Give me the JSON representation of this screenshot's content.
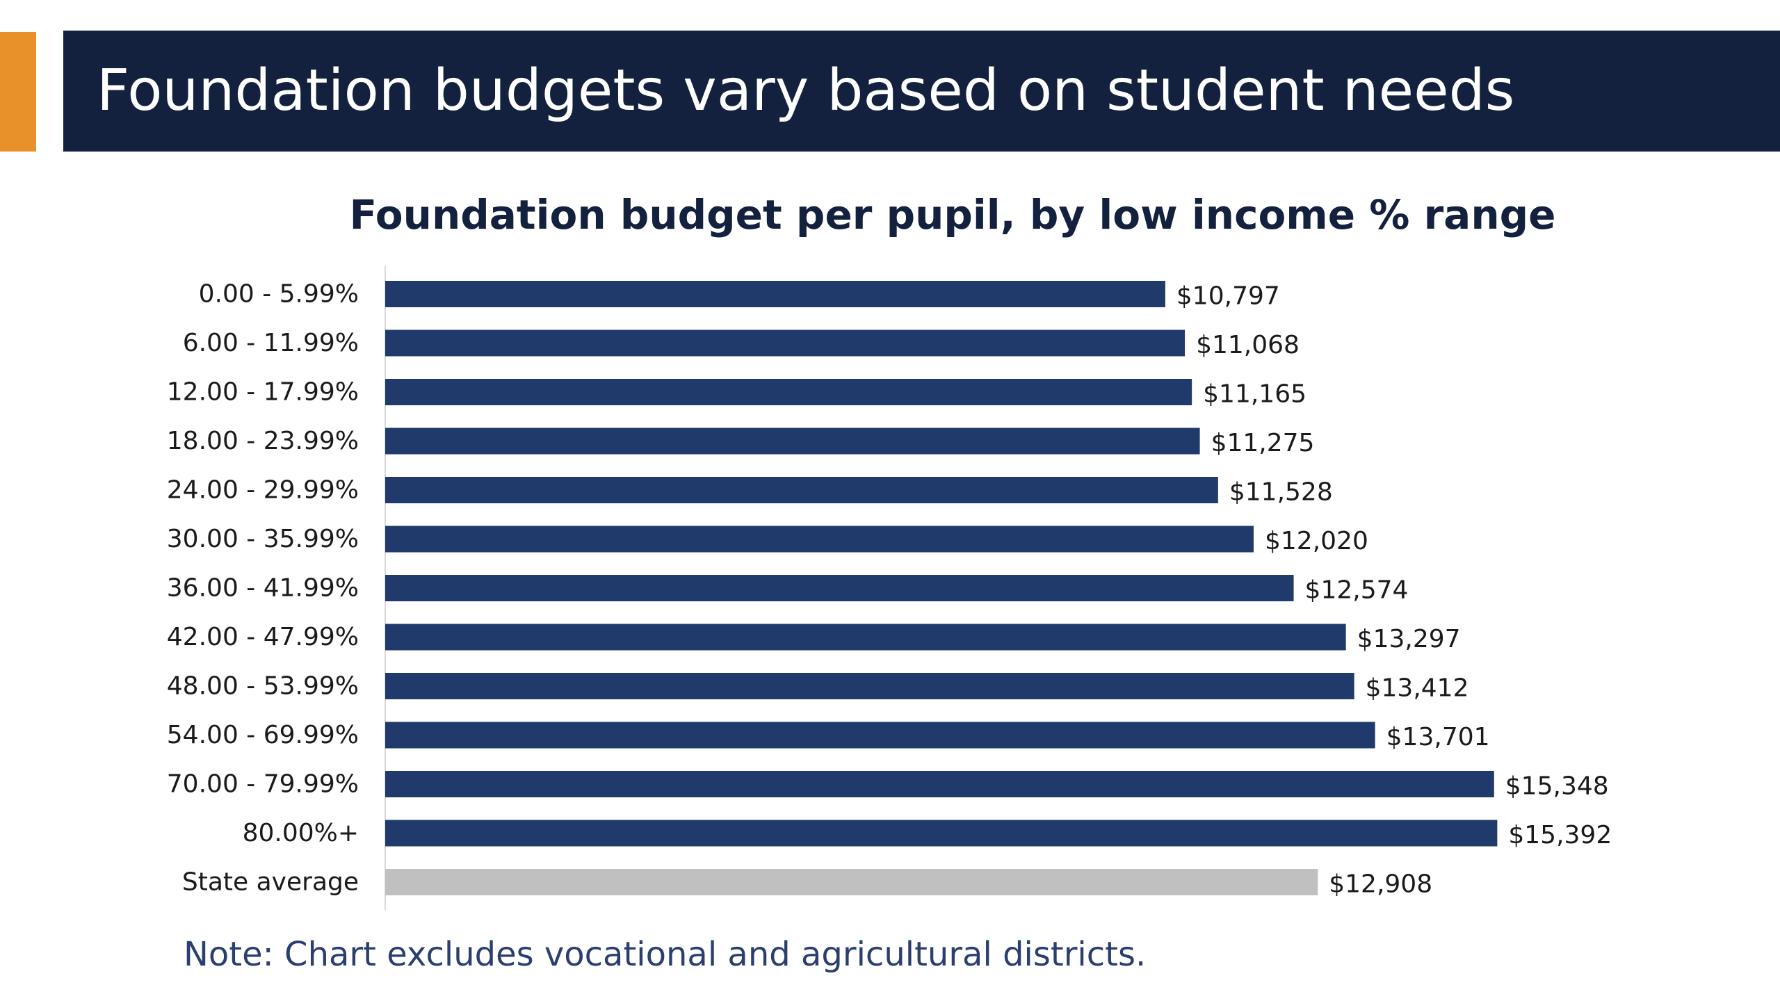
{
  "slide": {
    "title": "Foundation budgets vary based on student needs",
    "note": "Note: Chart excludes vocational and agricultural districts."
  },
  "colors": {
    "accent": "#e8902a",
    "banner": "#13213e",
    "bar": "#1f3a6b",
    "bar_average": "#c0c0c0"
  },
  "chart_data": {
    "type": "bar",
    "orientation": "horizontal",
    "title": "Foundation budget per pupil, by low income % range",
    "xlabel": "",
    "ylabel": "",
    "xlim": [
      0,
      16000
    ],
    "grid": false,
    "legend": "none",
    "categories": [
      "0.00 - 5.99%",
      "6.00 - 11.99%",
      "12.00 - 17.99%",
      "18.00 - 23.99%",
      "24.00 - 29.99%",
      "30.00 - 35.99%",
      "36.00 - 41.99%",
      "42.00 - 47.99%",
      "48.00 - 53.99%",
      "54.00 - 69.99%",
      "70.00 - 79.99%",
      "80.00%+",
      "State average"
    ],
    "values": [
      10797,
      11068,
      11165,
      11275,
      11528,
      12020,
      12574,
      13297,
      13412,
      13701,
      15348,
      15392,
      12908
    ],
    "data_labels": [
      "$10,797",
      "$11,068",
      "$11,165",
      "$11,275",
      "$11,528",
      "$12,020",
      "$12,574",
      "$13,297",
      "$13,412",
      "$13,701",
      "$15,348",
      "$15,392",
      "$12,908"
    ],
    "highlight_category": "State average"
  }
}
